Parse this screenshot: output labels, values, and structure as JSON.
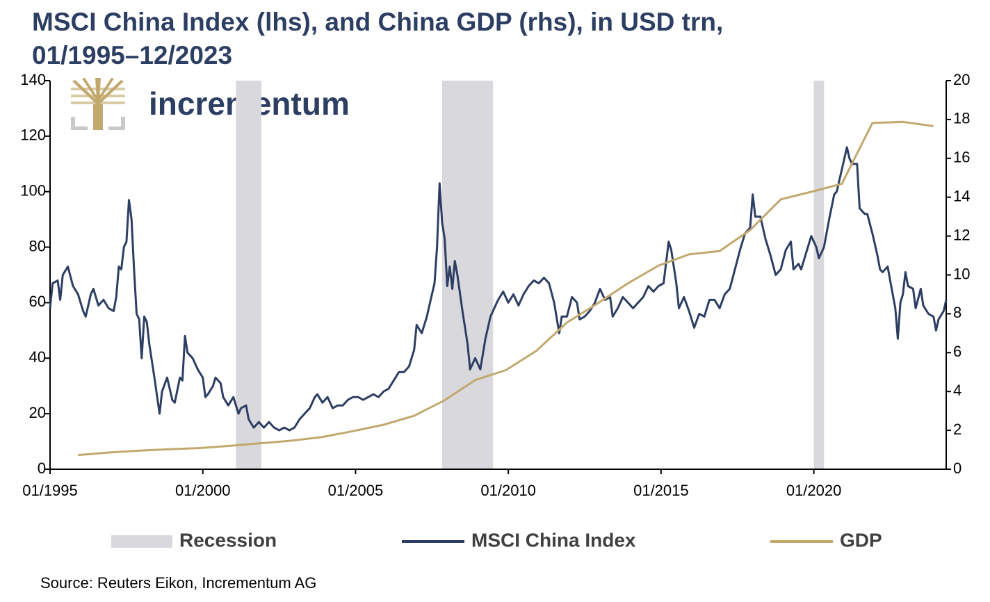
{
  "chart_data": {
    "type": "line",
    "title": "MSCI China Index (lhs), and China GDP (rhs), in USD trn, 01/1995–12/2023",
    "logo": "incrementum",
    "source": "Source: Reuters Eikon, Incrementum AG",
    "legend": "bottom",
    "xlim": [
      "1995-01",
      "2024-05"
    ],
    "xticks": [
      {
        "value": "1995-01",
        "label": "01/1995"
      },
      {
        "value": "2000-01",
        "label": "01/2000"
      },
      {
        "value": "2005-01",
        "label": "01/2005"
      },
      {
        "value": "2010-01",
        "label": "01/2010"
      },
      {
        "value": "2015-01",
        "label": "01/2015"
      },
      {
        "value": "2020-01",
        "label": "01/2020"
      }
    ],
    "ylim": [
      0,
      140
    ],
    "yticks": [
      0,
      20,
      40,
      60,
      80,
      100,
      120,
      140
    ],
    "y2lim": [
      0,
      20
    ],
    "y2ticks": [
      0,
      2,
      4,
      6,
      8,
      10,
      12,
      14,
      16,
      18,
      20
    ],
    "recessions": {
      "name": "Recession",
      "color": "#d9d8dc",
      "periods": [
        {
          "start": "2001-02",
          "end": "2001-12"
        },
        {
          "start": "2007-11",
          "end": "2009-07"
        },
        {
          "start": "2020-01",
          "end": "2020-05"
        }
      ]
    },
    "series": [
      {
        "name": "MSCI China Index",
        "color": "#2d3e63",
        "axis": "y",
        "x": [
          "1995-01",
          "1995-02",
          "1995-04",
          "1995-05",
          "1995-06",
          "1995-08",
          "1995-10",
          "1995-12",
          "1996-02",
          "1996-03",
          "1996-05",
          "1996-06",
          "1996-08",
          "1996-10",
          "1996-12",
          "1997-02",
          "1997-03",
          "1997-04",
          "1997-05",
          "1997-06",
          "1997-07",
          "1997-08",
          "1997-09",
          "1997-10",
          "1997-11",
          "1997-12",
          "1998-01",
          "1998-02",
          "1998-03",
          "1998-04",
          "1998-06",
          "1998-08",
          "1998-09",
          "1998-11",
          "1999-01",
          "1999-02",
          "1999-04",
          "1999-05",
          "1999-06",
          "1999-07",
          "1999-09",
          "1999-11",
          "2000-01",
          "2000-02",
          "2000-03",
          "2000-05",
          "2000-06",
          "2000-08",
          "2000-09",
          "2000-11",
          "2001-01",
          "2001-03",
          "2001-04",
          "2001-06",
          "2001-07",
          "2001-09",
          "2001-11",
          "2002-01",
          "2002-03",
          "2002-05",
          "2002-07",
          "2002-09",
          "2002-11",
          "2003-01",
          "2003-03",
          "2003-05",
          "2003-07",
          "2003-09",
          "2003-10",
          "2003-12",
          "2004-02",
          "2004-04",
          "2004-06",
          "2004-08",
          "2004-10",
          "2004-12",
          "2005-02",
          "2005-04",
          "2005-06",
          "2005-08",
          "2005-10",
          "2005-12",
          "2006-02",
          "2006-04",
          "2006-06",
          "2006-08",
          "2006-10",
          "2006-12",
          "2007-01",
          "2007-03",
          "2007-05",
          "2007-07",
          "2007-08",
          "2007-09",
          "2007-10",
          "2007-11",
          "2007-12",
          "2008-01",
          "2008-02",
          "2008-03",
          "2008-04",
          "2008-05",
          "2008-07",
          "2008-09",
          "2008-10",
          "2008-11",
          "2008-12",
          "2009-02",
          "2009-04",
          "2009-06",
          "2009-08",
          "2009-09",
          "2009-11",
          "2010-01",
          "2010-03",
          "2010-05",
          "2010-07",
          "2010-09",
          "2010-11",
          "2011-01",
          "2011-03",
          "2011-05",
          "2011-07",
          "2011-09",
          "2011-10",
          "2011-12",
          "2012-02",
          "2012-04",
          "2012-05",
          "2012-07",
          "2012-09",
          "2012-11",
          "2013-01",
          "2013-03",
          "2013-05",
          "2013-06",
          "2013-08",
          "2013-10",
          "2013-12",
          "2014-02",
          "2014-04",
          "2014-06",
          "2014-08",
          "2014-10",
          "2014-12",
          "2015-02",
          "2015-04",
          "2015-05",
          "2015-07",
          "2015-08",
          "2015-10",
          "2015-12",
          "2016-02",
          "2016-04",
          "2016-06",
          "2016-08",
          "2016-10",
          "2016-12",
          "2017-02",
          "2017-04",
          "2017-06",
          "2017-08",
          "2017-10",
          "2017-12",
          "2018-01",
          "2018-02",
          "2018-04",
          "2018-06",
          "2018-08",
          "2018-10",
          "2018-12",
          "2019-02",
          "2019-04",
          "2019-05",
          "2019-07",
          "2019-08",
          "2019-10",
          "2019-12",
          "2020-02",
          "2020-03",
          "2020-05",
          "2020-07",
          "2020-09",
          "2020-10",
          "2020-12",
          "2021-02",
          "2021-03",
          "2021-04",
          "2021-06",
          "2021-07",
          "2021-09",
          "2021-10",
          "2021-12",
          "2022-02",
          "2022-03",
          "2022-04",
          "2022-06",
          "2022-07",
          "2022-09",
          "2022-10",
          "2022-11",
          "2022-12",
          "2023-01",
          "2023-02",
          "2023-04",
          "2023-05",
          "2023-07",
          "2023-08",
          "2023-10",
          "2023-12",
          "2024-01",
          "2024-02",
          "2024-04",
          "2024-05"
        ],
        "values": [
          58,
          67,
          68,
          61,
          70,
          73,
          66,
          63,
          57,
          55,
          63,
          65,
          59,
          61,
          58,
          57,
          62,
          73,
          72,
          80,
          82,
          97,
          90,
          72,
          56,
          54,
          40,
          55,
          53,
          45,
          33,
          20,
          28,
          33,
          25,
          24,
          33,
          32,
          48,
          42,
          40,
          36,
          33,
          26,
          27,
          30,
          33,
          31,
          26,
          23,
          26,
          20,
          22,
          23,
          18,
          15,
          17,
          15,
          17,
          15,
          14,
          15,
          14,
          15,
          18,
          20,
          22,
          26,
          27,
          24,
          26,
          22,
          23,
          23,
          25,
          26,
          26,
          25,
          26,
          27,
          26,
          28,
          29,
          32,
          35,
          35,
          37,
          43,
          52,
          49,
          55,
          63,
          67,
          80,
          103,
          89,
          83,
          66,
          73,
          65,
          75,
          70,
          57,
          45,
          36,
          38,
          40,
          36,
          47,
          55,
          59,
          61,
          64,
          60,
          63,
          59,
          63,
          66,
          68,
          67,
          69,
          67,
          60,
          49,
          55,
          55,
          62,
          60,
          54,
          55,
          57,
          60,
          65,
          61,
          62,
          55,
          58,
          62,
          60,
          58,
          60,
          62,
          66,
          64,
          66,
          67,
          82,
          79,
          67,
          58,
          62,
          57,
          51,
          56,
          55,
          61,
          61,
          58,
          63,
          65,
          72,
          79,
          85,
          87,
          99,
          91,
          91,
          83,
          77,
          70,
          72,
          79,
          82,
          72,
          74,
          72,
          78,
          84,
          80,
          76,
          80,
          90,
          99,
          100,
          108,
          116,
          112,
          110,
          110,
          94,
          92,
          92,
          85,
          77,
          72,
          71,
          73,
          68,
          58,
          47,
          60,
          63,
          71,
          66,
          65,
          58,
          65,
          59,
          56,
          55,
          50,
          54,
          57,
          61
        ]
      },
      {
        "name": "GDP",
        "color": "#c2a86d",
        "axis": "y2",
        "x": [
          "1995-12",
          "1996-12",
          "1997-12",
          "1998-12",
          "1999-12",
          "2000-12",
          "2001-12",
          "2002-12",
          "2003-12",
          "2004-12",
          "2005-12",
          "2006-12",
          "2007-12",
          "2008-12",
          "2009-12",
          "2010-12",
          "2011-12",
          "2012-12",
          "2013-12",
          "2014-12",
          "2015-12",
          "2016-12",
          "2017-12",
          "2018-12",
          "2019-12",
          "2020-12",
          "2021-12",
          "2022-12",
          "2023-12"
        ],
        "values": [
          0.73,
          0.86,
          0.96,
          1.03,
          1.09,
          1.21,
          1.34,
          1.47,
          1.66,
          1.96,
          2.29,
          2.75,
          3.55,
          4.59,
          5.1,
          6.09,
          7.55,
          8.53,
          9.57,
          10.48,
          11.06,
          11.23,
          12.31,
          13.89,
          14.28,
          14.69,
          17.82,
          17.88,
          17.66
        ]
      }
    ]
  }
}
